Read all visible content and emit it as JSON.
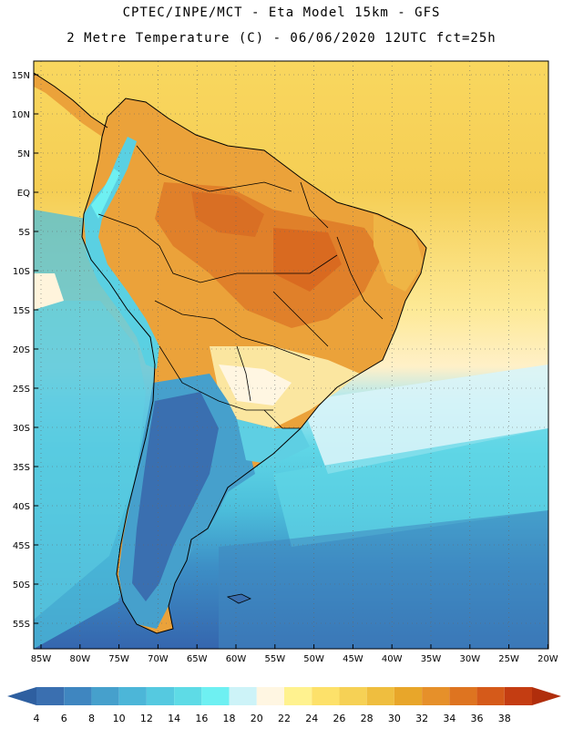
{
  "header": {
    "line1": "CPTEC/INPE/MCT -  Eta Model 15km - GFS",
    "line2": "2 Metre Temperature (C) - 06/06/2020 12UTC fct=25h"
  },
  "map": {
    "lat_labels": [
      "15N",
      "10N",
      "5N",
      "EQ",
      "5S",
      "10S",
      "15S",
      "20S",
      "25S",
      "30S",
      "35S",
      "40S",
      "45S",
      "50S",
      "55S"
    ],
    "lon_labels": [
      "85W",
      "80W",
      "75W",
      "70W",
      "65W",
      "60W",
      "55W",
      "50W",
      "45W",
      "40W",
      "35W",
      "30W",
      "25W",
      "20W"
    ]
  },
  "colorbar": {
    "labels": [
      "4",
      "6",
      "8",
      "10",
      "12",
      "14",
      "16",
      "18",
      "20",
      "22",
      "24",
      "26",
      "28",
      "30",
      "32",
      "34",
      "36",
      "38"
    ],
    "colors": [
      "#3a6fb0",
      "#3f86c0",
      "#46a0cc",
      "#4cb6d8",
      "#55c9e0",
      "#5edbe6",
      "#6ef0f2",
      "#cdf3f8",
      "#fff6e2",
      "#fff28f",
      "#fde16a",
      "#f6d155",
      "#efbe3f",
      "#e8a62a",
      "#e6902a",
      "#de7420",
      "#d55a1a",
      "#c43d12"
    ],
    "under_color": "#2e5fa0",
    "over_color": "#b02e0c"
  }
}
